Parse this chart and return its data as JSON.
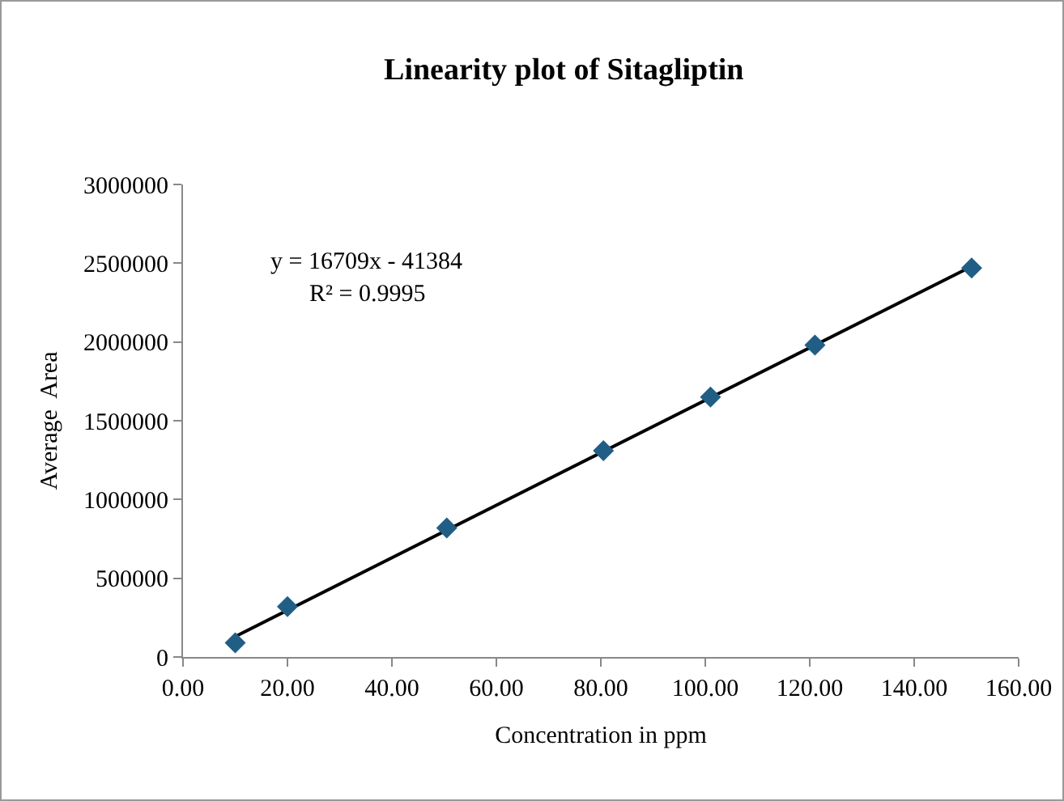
{
  "chart_data": {
    "type": "scatter",
    "title": "Linearity plot of Sitagliptin",
    "xlabel": "Concentration in ppm",
    "ylabel": "Average  Area",
    "annotations": [
      "y = 16709x - 41384",
      "R² = 0.9995"
    ],
    "x": [
      10,
      20,
      50.5,
      80.5,
      101,
      121,
      151
    ],
    "series": [
      {
        "color": "#215e86",
        "marker": "diamond",
        "values": [
          90000,
          320000,
          820000,
          1310000,
          1650000,
          1980000,
          2470000
        ]
      },
      {
        "type": "line",
        "color": "#000000",
        "marker": "none",
        "line_style": "solid",
        "x": [
          10,
          151
        ],
        "values": [
          130000,
          2480000
        ]
      }
    ],
    "xlim": [
      0,
      160
    ],
    "xticks": [
      {
        "value": 0,
        "label": "0.00"
      },
      {
        "value": 20,
        "label": "20.00"
      },
      {
        "value": 40,
        "label": "40.00"
      },
      {
        "value": 60,
        "label": "60.00"
      },
      {
        "value": 80,
        "label": "80.00"
      },
      {
        "value": 100,
        "label": "100.00"
      },
      {
        "value": 120,
        "label": "120.00"
      },
      {
        "value": 140,
        "label": "140.00"
      },
      {
        "value": 160,
        "label": "160.00"
      }
    ],
    "ylim": [
      0,
      3000000
    ],
    "yticks": [
      0,
      500000,
      1000000,
      1500000,
      2000000,
      2500000,
      3000000
    ],
    "grid": false,
    "legend": false
  }
}
